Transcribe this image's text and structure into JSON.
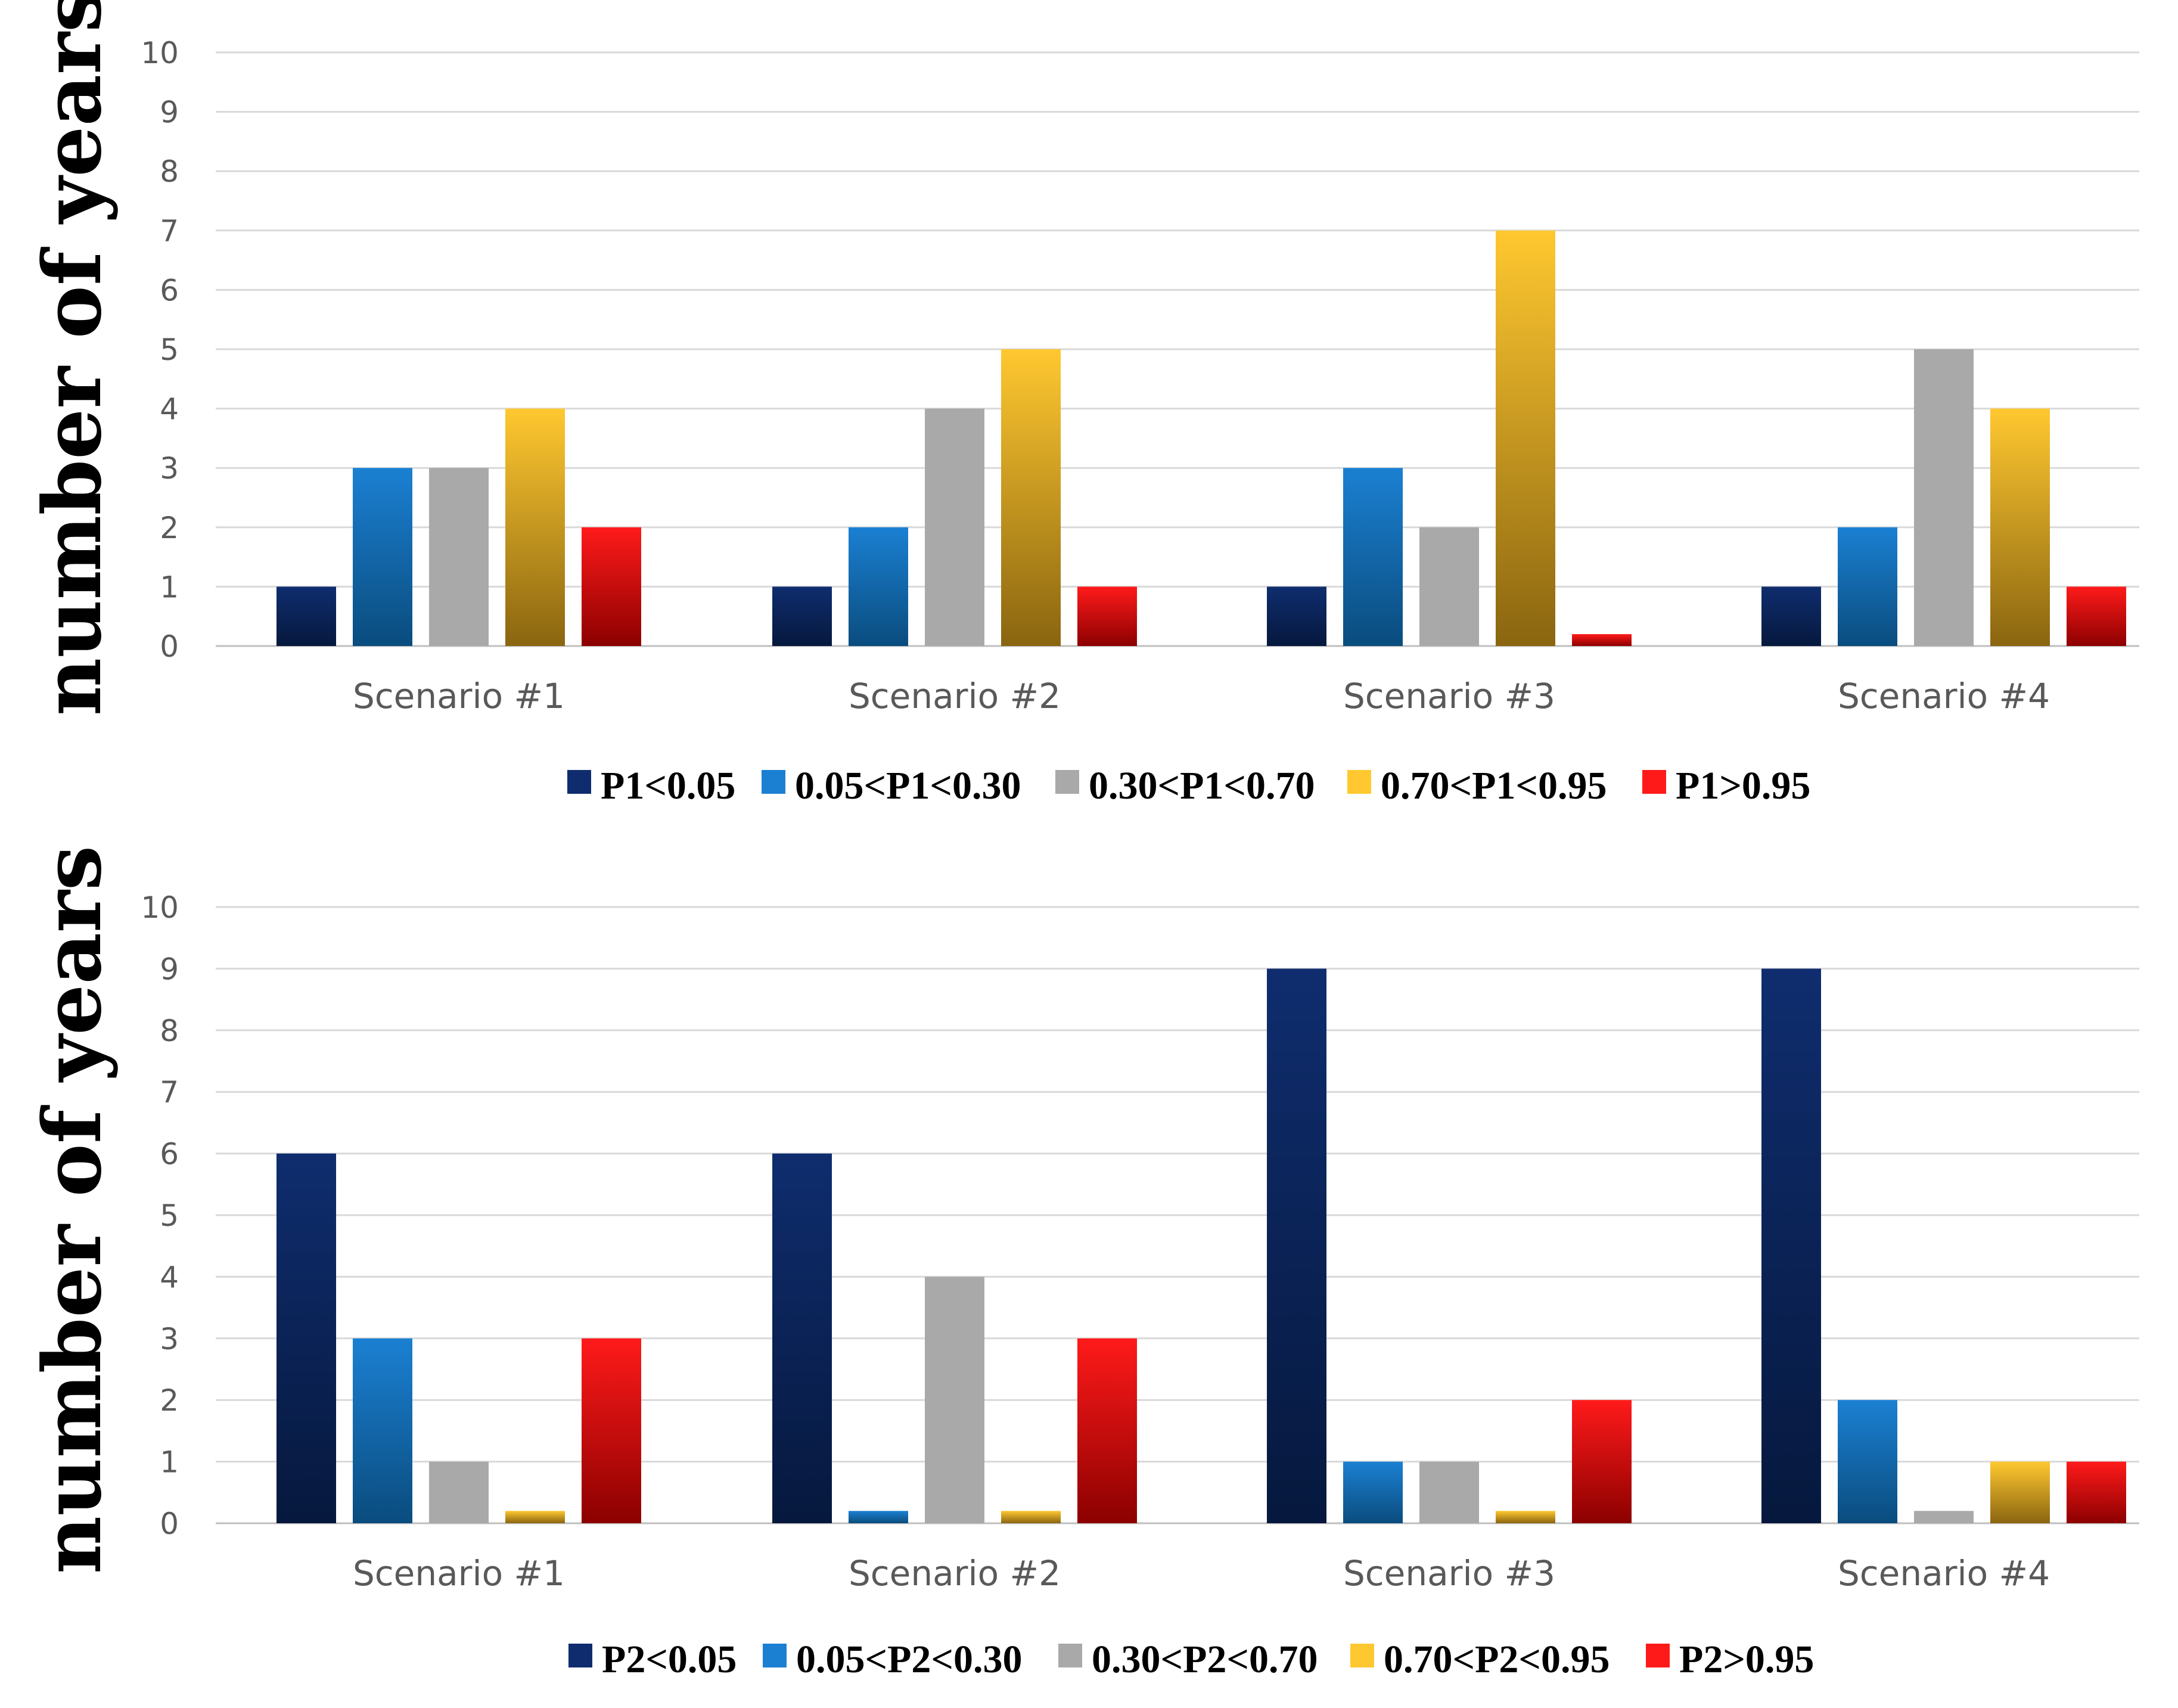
{
  "chart_data": [
    {
      "type": "bar",
      "ylabel": "number of years",
      "ylim": [
        0,
        10
      ],
      "yticks": [
        "0",
        "1",
        "2",
        "3",
        "4",
        "5",
        "6",
        "7",
        "8",
        "9",
        "10"
      ],
      "categories": [
        "Scenario #1",
        "Scenario #2",
        "Scenario #3",
        "Scenario #4"
      ],
      "series": [
        {
          "name": "P1<0.05",
          "values": [
            1,
            1,
            1,
            1
          ],
          "color_top": "#0f2d6e",
          "color_bottom": "#06183d"
        },
        {
          "name": "0.05<P1<0.30",
          "values": [
            3,
            2,
            3,
            2
          ],
          "color_top": "#1b80d2",
          "color_bottom": "#0a4c7e"
        },
        {
          "name": "0.30<P1<0.70",
          "values": [
            3,
            4,
            2,
            5
          ],
          "color_top": "#a9a9a9",
          "color_bottom": "#a9a9a9"
        },
        {
          "name": "0.70<P1<0.95",
          "values": [
            4,
            5,
            7,
            4
          ],
          "color_top": "#ffc830",
          "color_bottom": "#8a6510"
        },
        {
          "name": "P1>0.95",
          "values": [
            2,
            1,
            0.2,
            1
          ],
          "color_top": "#ff1a1a",
          "color_bottom": "#8c0000"
        }
      ],
      "legend": "bottom"
    },
    {
      "type": "bar",
      "ylabel": "number of years",
      "ylim": [
        0,
        10
      ],
      "yticks": [
        "0",
        "1",
        "2",
        "3",
        "4",
        "5",
        "6",
        "7",
        "8",
        "9",
        "10"
      ],
      "categories": [
        "Scenario #1",
        "Scenario #2",
        "Scenario #3",
        "Scenario #4"
      ],
      "series": [
        {
          "name": "P2<0.05",
          "values": [
            6,
            6,
            9,
            9
          ],
          "color_top": "#0f2d6e",
          "color_bottom": "#06183d"
        },
        {
          "name": "0.05<P2<0.30",
          "values": [
            3,
            0.2,
            1,
            2
          ],
          "color_top": "#1b80d2",
          "color_bottom": "#0a4c7e"
        },
        {
          "name": "0.30<P2<0.70",
          "values": [
            1,
            4,
            1,
            0.2
          ],
          "color_top": "#a9a9a9",
          "color_bottom": "#a9a9a9"
        },
        {
          "name": "0.70<P2<0.95",
          "values": [
            0.2,
            0.2,
            0.2,
            1
          ],
          "color_top": "#ffc830",
          "color_bottom": "#8a6510"
        },
        {
          "name": "P2>0.95",
          "values": [
            3,
            3,
            2,
            1
          ],
          "color_top": "#ff1a1a",
          "color_bottom": "#8c0000"
        }
      ],
      "legend": "bottom"
    }
  ]
}
